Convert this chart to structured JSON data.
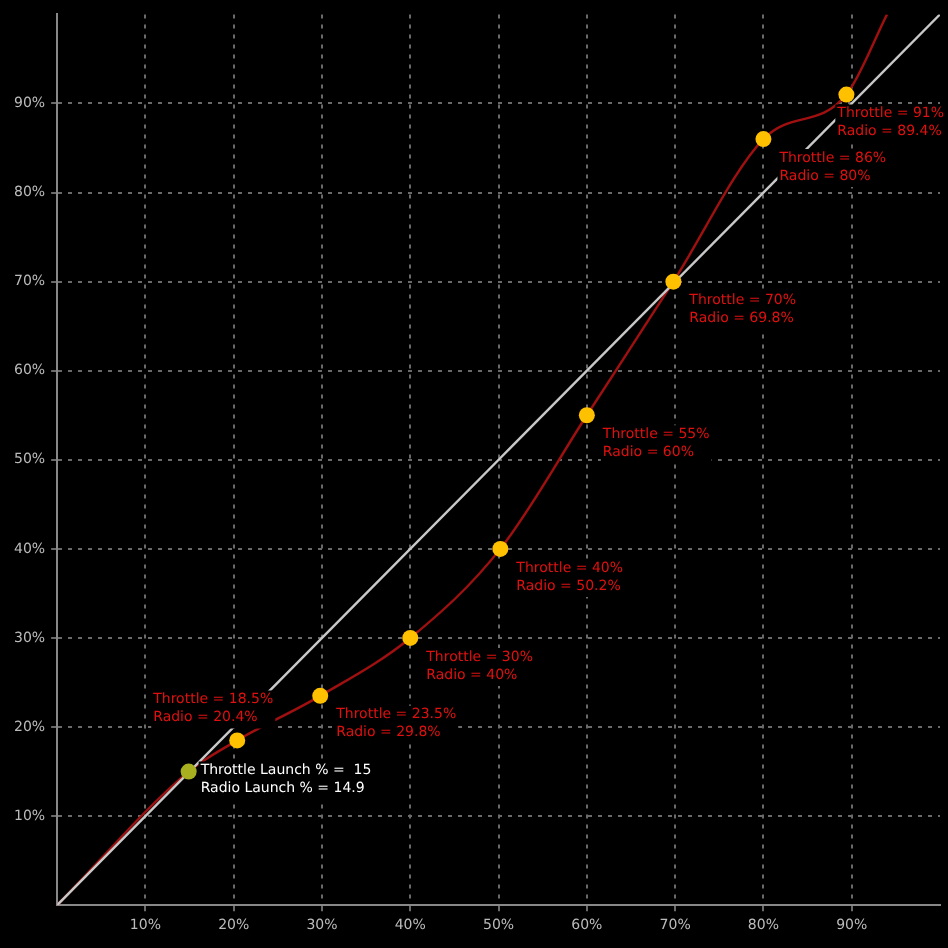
{
  "chart_data": {
    "type": "line",
    "xlim": [
      0,
      100
    ],
    "ylim": [
      0,
      100
    ],
    "xticks": [
      {
        "value": 10,
        "label": "10%"
      },
      {
        "value": 20,
        "label": "20%"
      },
      {
        "value": 30,
        "label": "30%"
      },
      {
        "value": 40,
        "label": "40%"
      },
      {
        "value": 50,
        "label": "50%"
      },
      {
        "value": 60,
        "label": "60%"
      },
      {
        "value": 70,
        "label": "70%"
      },
      {
        "value": 80,
        "label": "80%"
      },
      {
        "value": 90,
        "label": "90%"
      }
    ],
    "yticks": [
      {
        "value": 10,
        "label": "10%"
      },
      {
        "value": 20,
        "label": "20%"
      },
      {
        "value": 30,
        "label": "30%"
      },
      {
        "value": 40,
        "label": "40%"
      },
      {
        "value": 50,
        "label": "50%"
      },
      {
        "value": 60,
        "label": "60%"
      },
      {
        "value": 70,
        "label": "70%"
      },
      {
        "value": 80,
        "label": "80%"
      },
      {
        "value": 90,
        "label": "90%"
      }
    ],
    "grid": true,
    "line_style": "dotted",
    "series": [
      {
        "color": "#c8c8c8",
        "x": [
          0,
          100
        ],
        "values": [
          0,
          100
        ],
        "marker": "none",
        "line_style": "solid"
      },
      {
        "color": "#a01010",
        "x": [
          0,
          14.9,
          20.4,
          29.8,
          40,
          50.2,
          60,
          69.8,
          80,
          89.4,
          94
        ],
        "values": [
          0,
          15,
          18.5,
          23.5,
          30,
          40,
          55,
          70,
          86,
          91,
          100
        ],
        "marker": "none",
        "line_style": "solid"
      },
      {
        "type": "scatter",
        "color": "#ffc000",
        "x": [
          20.4,
          29.8,
          40,
          50.2,
          60,
          69.8,
          80,
          89.4
        ],
        "values": [
          18.5,
          23.5,
          30,
          40,
          55,
          70,
          86,
          91
        ],
        "marker": "circle"
      },
      {
        "type": "scatter",
        "color": "#a8b020",
        "x": [
          14.9
        ],
        "values": [
          15
        ],
        "marker": "circle"
      }
    ],
    "annotations": [
      {
        "text": "Throttle Launch % =  15\nRadio Launch % = 14.9",
        "x": 14.9,
        "y": 15
      },
      {
        "text": "Throttle = 18.5%\nRadio = 20.4%",
        "x": 20.4,
        "y": 18.5
      },
      {
        "text": "Throttle = 23.5%\nRadio = 29.8%",
        "x": 29.8,
        "y": 23.5
      },
      {
        "text": "Throttle = 30%\nRadio = 40%",
        "x": 40,
        "y": 30
      },
      {
        "text": "Throttle = 40%\nRadio = 50.2%",
        "x": 50.2,
        "y": 40
      },
      {
        "text": "Throttle = 55%\nRadio = 60%",
        "x": 60,
        "y": 55
      },
      {
        "text": "Throttle = 70%\nRadio = 69.8%",
        "x": 69.8,
        "y": 70
      },
      {
        "text": "Throttle = 86%\nRadio = 80%",
        "x": 80,
        "y": 86
      },
      {
        "text": "Throttle = 91%\nRadio = 89.4%",
        "x": 89.4,
        "y": 91
      }
    ]
  }
}
